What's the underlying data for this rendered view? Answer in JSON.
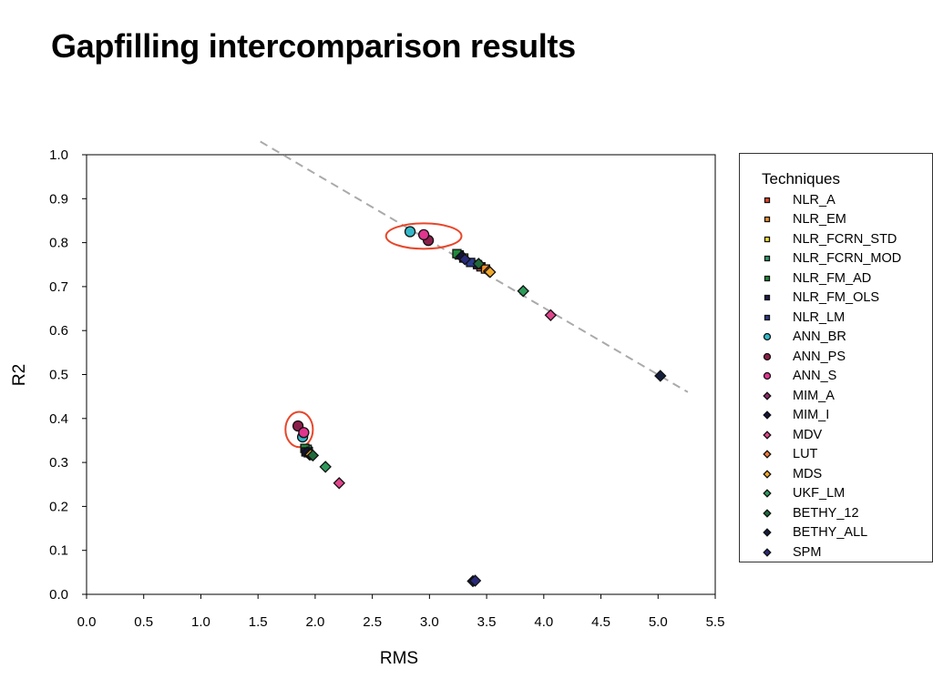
{
  "page": {
    "title": "Gapfilling intercomparison results"
  },
  "chart_data": {
    "type": "scatter",
    "title": "",
    "xlabel": "RMS",
    "ylabel": "R2",
    "xlim": [
      0,
      5.5
    ],
    "ylim": [
      0,
      1.0
    ],
    "xticks": [
      "0.0",
      "0.5",
      "1.0",
      "1.5",
      "2.0",
      "2.5",
      "3.0",
      "3.5",
      "4.0",
      "4.5",
      "5.0",
      "5.5"
    ],
    "yticks": [
      "0.0",
      "0.1",
      "0.2",
      "0.3",
      "0.4",
      "0.5",
      "0.6",
      "0.7",
      "0.8",
      "0.9",
      "1.0"
    ],
    "grid": false,
    "legend": {
      "title": "Techniques",
      "position": "right"
    },
    "trend_line": {
      "style": "dashed",
      "color": "#aaaaaa",
      "points": [
        [
          1.52,
          1.03
        ],
        [
          5.26,
          0.46
        ]
      ]
    },
    "highlight_ellipses": [
      {
        "cx": 2.95,
        "cy": 0.815,
        "rx": 0.33,
        "ry": 0.029,
        "color": "#e8462a"
      },
      {
        "cx": 1.86,
        "cy": 0.375,
        "rx": 0.12,
        "ry": 0.04,
        "color": "#e8462a"
      }
    ],
    "series": [
      {
        "name": "NLR_A",
        "color": "#e8462a",
        "marker": "square",
        "points": [
          [
            3.45,
            0.745
          ],
          [
            1.93,
            0.327
          ]
        ]
      },
      {
        "name": "NLR_EM",
        "color": "#f0922a",
        "marker": "square",
        "points": [
          [
            3.49,
            0.74
          ],
          [
            1.94,
            0.325
          ]
        ]
      },
      {
        "name": "NLR_FCRN_STD",
        "color": "#f5e02a",
        "marker": "square",
        "points": [
          [
            3.3,
            0.765
          ],
          [
            1.92,
            0.325
          ]
        ]
      },
      {
        "name": "NLR_FCRN_MOD",
        "color": "#2e9b6e",
        "marker": "square",
        "points": [
          [
            3.26,
            0.772
          ],
          [
            1.93,
            0.33
          ]
        ]
      },
      {
        "name": "NLR_FM_AD",
        "color": "#1f8a3a",
        "marker": "square",
        "points": [
          [
            3.24,
            0.775
          ],
          [
            1.91,
            0.332
          ]
        ]
      },
      {
        "name": "NLR_FM_OLS",
        "color": "#1c1c4e",
        "marker": "square",
        "points": [
          [
            3.42,
            0.75
          ],
          [
            1.92,
            0.324
          ]
        ]
      },
      {
        "name": "NLR_LM",
        "color": "#2a3a8c",
        "marker": "square",
        "points": [
          [
            3.36,
            0.755
          ],
          [
            1.94,
            0.322
          ]
        ]
      },
      {
        "name": "ANN_BR",
        "color": "#34b8c8",
        "marker": "circle",
        "points": [
          [
            2.83,
            0.825
          ],
          [
            1.89,
            0.358
          ]
        ]
      },
      {
        "name": "ANN_PS",
        "color": "#8c1f4a",
        "marker": "circle",
        "points": [
          [
            2.99,
            0.805
          ],
          [
            1.85,
            0.383
          ]
        ]
      },
      {
        "name": "ANN_S",
        "color": "#e0368e",
        "marker": "circle",
        "points": [
          [
            2.95,
            0.818
          ],
          [
            1.9,
            0.368
          ]
        ]
      },
      {
        "name": "MIM_A",
        "color": "#8c2a6a",
        "marker": "diamond",
        "points": [
          [
            3.3,
            0.765
          ],
          [
            1.95,
            0.32
          ]
        ]
      },
      {
        "name": "MIM_I",
        "color": "#14143c",
        "marker": "diamond",
        "points": [
          [
            3.28,
            0.768
          ],
          [
            1.93,
            0.323
          ]
        ]
      },
      {
        "name": "MDV",
        "color": "#e0468c",
        "marker": "diamond",
        "points": [
          [
            4.06,
            0.635
          ],
          [
            2.21,
            0.253
          ]
        ]
      },
      {
        "name": "LUT",
        "color": "#f07a3a",
        "marker": "diamond",
        "points": [
          [
            3.52,
            0.735
          ],
          [
            1.95,
            0.318
          ]
        ]
      },
      {
        "name": "MDS",
        "color": "#f0a82a",
        "marker": "diamond",
        "points": [
          [
            3.53,
            0.733
          ],
          [
            1.96,
            0.318
          ]
        ]
      },
      {
        "name": "UKF_LM",
        "color": "#2e9b5a",
        "marker": "diamond",
        "points": [
          [
            3.82,
            0.69
          ],
          [
            2.09,
            0.29
          ]
        ]
      },
      {
        "name": "BETHY_12",
        "color": "#1f6a3a",
        "marker": "diamond",
        "points": [
          [
            3.43,
            0.752
          ],
          [
            1.98,
            0.316
          ]
        ]
      },
      {
        "name": "BETHY_ALL",
        "color": "#141e3c",
        "marker": "diamond",
        "points": [
          [
            5.02,
            0.497
          ],
          [
            3.38,
            0.03
          ]
        ]
      },
      {
        "name": "SPM",
        "color": "#2a2a7a",
        "marker": "diamond",
        "points": [
          [
            3.31,
            0.762
          ],
          [
            3.4,
            0.031
          ]
        ]
      }
    ]
  }
}
